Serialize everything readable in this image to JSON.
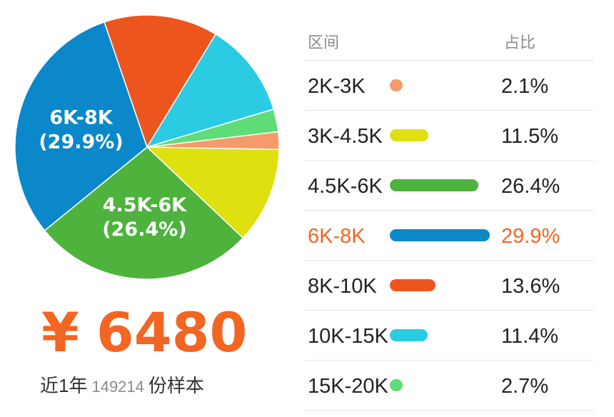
{
  "chart_data": {
    "type": "pie",
    "slices": [
      {
        "label": "2K-3K",
        "value": 2.1,
        "pct_text": "2.1%",
        "color": "#f59a6a"
      },
      {
        "label": "3K-4.5K",
        "value": 11.5,
        "pct_text": "11.5%",
        "color": "#dfe00f"
      },
      {
        "label": "4.5K-6K",
        "value": 26.4,
        "pct_text": "26.4%",
        "color": "#4db33d",
        "pie_label": [
          "4.5K-6K",
          "(26.4%)"
        ]
      },
      {
        "label": "6K-8K",
        "value": 29.9,
        "pct_text": "29.9%",
        "color": "#0a88c9",
        "pie_label": [
          "6K-8K",
          "(29.9%)"
        ]
      },
      {
        "label": "8K-10K",
        "value": 13.6,
        "pct_text": "13.6%",
        "color": "#ec561e"
      },
      {
        "label": "10K-15K",
        "value": 11.4,
        "pct_text": "11.4%",
        "color": "#2ccbe4"
      },
      {
        "label": "15K-20K",
        "value": 2.7,
        "pct_text": "2.7%",
        "color": "#5fdc78"
      }
    ],
    "highlighted": "6K-8K",
    "highlight_color": "#f26522"
  },
  "table": {
    "col_range": "区间",
    "col_ratio": "占比"
  },
  "summary": {
    "salary": "6480",
    "currency": "¥",
    "period": "近1年",
    "sample_count": "149214",
    "sample_suffix": "份样本"
  }
}
